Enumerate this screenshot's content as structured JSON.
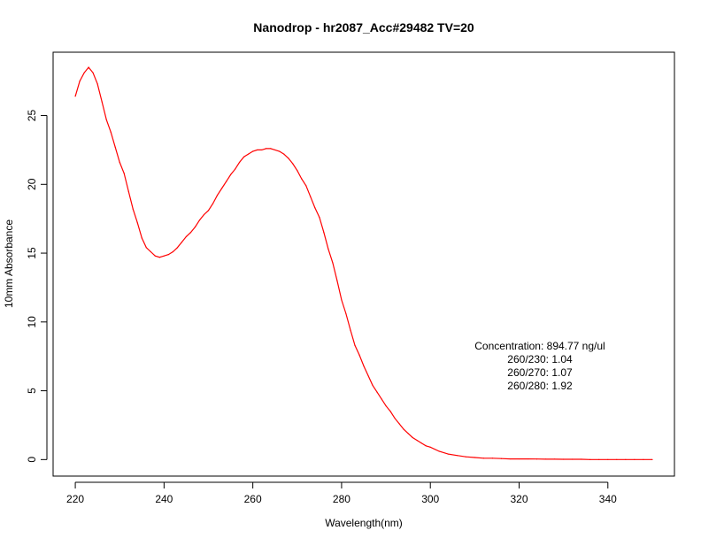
{
  "chart_data": {
    "type": "line",
    "title": "Nanodrop - hr2087_Acc#29482 TV=20",
    "xlabel": "Wavelength(nm)",
    "ylabel": "10mm Absorbance",
    "xlim": [
      215,
      355
    ],
    "ylim": [
      -1.2,
      29.6
    ],
    "xticks": [
      220,
      240,
      260,
      280,
      300,
      320,
      340
    ],
    "yticks": [
      0,
      5,
      10,
      15,
      20,
      25
    ],
    "grid": false,
    "legend": "none",
    "line_color": "#ff0000",
    "series": [
      {
        "x": [
          220,
          221,
          222,
          223,
          224,
          225,
          226,
          227,
          228,
          229,
          230,
          231,
          232,
          233,
          234,
          235,
          236,
          237,
          238,
          239,
          240,
          241,
          242,
          243,
          244,
          245,
          246,
          247,
          248,
          249,
          250,
          251,
          252,
          253,
          254,
          255,
          256,
          257,
          258,
          259,
          260,
          261,
          262,
          263,
          264,
          265,
          266,
          267,
          268,
          269,
          270,
          271,
          272,
          273,
          274,
          275,
          276,
          277,
          278,
          279,
          280,
          281,
          282,
          283,
          284,
          285,
          286,
          287,
          288,
          289,
          290,
          291,
          292,
          293,
          294,
          295,
          296,
          297,
          298,
          299,
          300,
          302,
          304,
          306,
          308,
          310,
          312,
          314,
          316,
          318,
          320,
          322,
          324,
          326,
          328,
          330,
          332,
          334,
          336,
          338,
          340,
          342,
          344,
          346,
          348,
          350
        ],
        "y": [
          26.4,
          27.5,
          28.1,
          28.5,
          28.1,
          27.3,
          26.0,
          24.7,
          23.8,
          22.7,
          21.6,
          20.8,
          19.5,
          18.2,
          17.2,
          16.1,
          15.4,
          15.1,
          14.8,
          14.7,
          14.8,
          14.9,
          15.1,
          15.4,
          15.8,
          16.2,
          16.5,
          16.9,
          17.4,
          17.8,
          18.1,
          18.6,
          19.2,
          19.7,
          20.2,
          20.7,
          21.1,
          21.6,
          22.0,
          22.2,
          22.4,
          22.5,
          22.5,
          22.6,
          22.6,
          22.5,
          22.4,
          22.2,
          21.9,
          21.5,
          21.0,
          20.4,
          19.9,
          19.1,
          18.3,
          17.6,
          16.5,
          15.3,
          14.3,
          13.0,
          11.6,
          10.6,
          9.4,
          8.3,
          7.6,
          6.8,
          6.1,
          5.4,
          4.9,
          4.4,
          3.9,
          3.5,
          3.0,
          2.6,
          2.2,
          1.9,
          1.6,
          1.4,
          1.2,
          1.0,
          0.9,
          0.6,
          0.4,
          0.3,
          0.2,
          0.15,
          0.1,
          0.1,
          0.07,
          0.05,
          0.05,
          0.05,
          0.04,
          0.03,
          0.03,
          0.02,
          0.02,
          0.02,
          0.0,
          0.0,
          0.0,
          0.0,
          0.0,
          0.0,
          0.0,
          0.0
        ]
      }
    ],
    "annotation": [
      "Concentration: 894.77 ng/ul",
      "260/230: 1.04",
      "260/270: 1.07",
      "260/280: 1.92"
    ]
  }
}
